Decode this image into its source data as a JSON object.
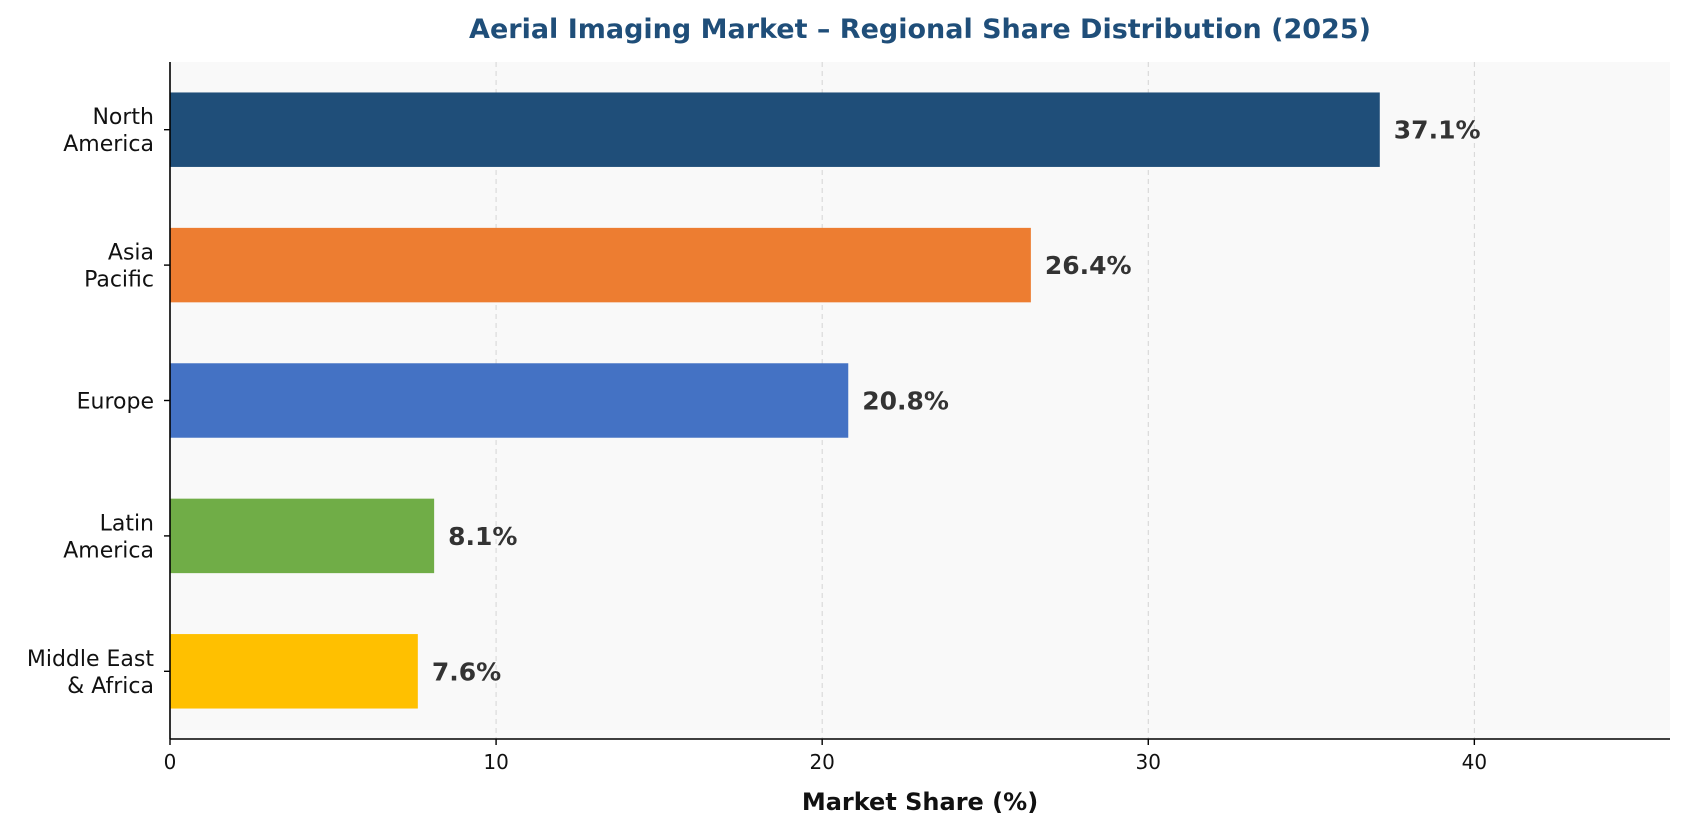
{
  "chart_data": {
    "type": "bar",
    "orientation": "horizontal",
    "title": "Aerial Imaging Market – Regional Share Distribution (2025)",
    "xlabel": "Market Share (%)",
    "ylabel": "",
    "categories": [
      [
        "North",
        "America"
      ],
      [
        "Asia",
        "Pacific"
      ],
      [
        "Europe"
      ],
      [
        "Latin",
        "America"
      ],
      [
        "Middle East",
        "& Africa"
      ]
    ],
    "values": [
      37.1,
      26.4,
      20.8,
      8.1,
      7.6
    ],
    "value_labels": [
      "37.1%",
      "26.4%",
      "20.8%",
      "8.1%",
      "7.6%"
    ],
    "colors": [
      "#1f4e79",
      "#ed7d31",
      "#4472c4",
      "#70ad47",
      "#ffc000"
    ],
    "xlim": [
      0,
      46
    ],
    "xticks": [
      0,
      10,
      20,
      30,
      40
    ],
    "xtick_labels": [
      "0",
      "10",
      "20",
      "30",
      "40"
    ],
    "grid": "vertical dashed",
    "plot_background": "#f9f9f9"
  }
}
